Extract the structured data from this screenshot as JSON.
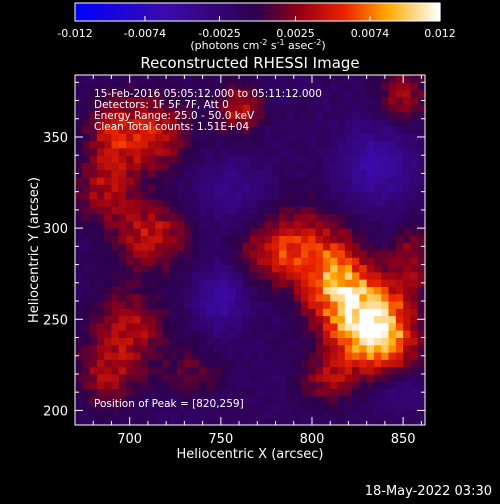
{
  "chart_data": {
    "type": "heatmap",
    "title": "Reconstructed RHESSI Image",
    "xlabel": "Heliocentric X (arcsec)",
    "ylabel": "Heliocentric Y (arcsec)",
    "xlim": [
      670,
      862
    ],
    "ylim": [
      192,
      384
    ],
    "x_ticks": [
      700,
      750,
      800,
      850
    ],
    "y_ticks": [
      200,
      250,
      300,
      350
    ],
    "colorbar": {
      "min": -0.012,
      "max": 0.012,
      "ticks": [
        "-0.012",
        "-0.0074",
        "-0.0025",
        "0.0025",
        "0.0074",
        "0.012"
      ],
      "unit_prefix": "(photons cm",
      "unit_exp1": "-2",
      "unit_mid": " s",
      "unit_exp2": "-1",
      "unit_mid2": " asec",
      "unit_exp3": "-2",
      "unit_suffix": ")"
    },
    "annotations": {
      "time_range": "15-Feb-2016 05:05:12.000 to 05:11:12.000",
      "detectors": "Detectors: 1F 5F 7F, Att 0",
      "energy_range": "Energy Range: 25.0 - 50.0 keV",
      "clean": "Clean    Total counts: 1.51E+04",
      "peak": "Position of Peak = [820,259]"
    },
    "peak": [
      820,
      259
    ],
    "sources": [
      {
        "x": 820,
        "y": 259,
        "amp": 0.0118,
        "sx": 14,
        "sy": 30,
        "rot": -28
      },
      {
        "x": 842,
        "y": 246,
        "amp": 0.0062,
        "sx": 12,
        "sy": 16,
        "rot": 0
      },
      {
        "x": 780,
        "y": 288,
        "amp": 0.0055,
        "sx": 14,
        "sy": 12,
        "rot": 0
      },
      {
        "x": 712,
        "y": 296,
        "amp": 0.0055,
        "sx": 14,
        "sy": 13,
        "rot": 0
      },
      {
        "x": 686,
        "y": 320,
        "amp": 0.0042,
        "sx": 12,
        "sy": 12,
        "rot": 0
      },
      {
        "x": 712,
        "y": 352,
        "amp": 0.0058,
        "sx": 14,
        "sy": 14,
        "rot": 0
      },
      {
        "x": 690,
        "y": 350,
        "amp": 0.0045,
        "sx": 10,
        "sy": 14,
        "rot": 0
      },
      {
        "x": 760,
        "y": 365,
        "amp": 0.0052,
        "sx": 9,
        "sy": 9,
        "rot": 0
      },
      {
        "x": 700,
        "y": 246,
        "amp": 0.0048,
        "sx": 14,
        "sy": 14,
        "rot": 0
      },
      {
        "x": 688,
        "y": 220,
        "amp": 0.0042,
        "sx": 12,
        "sy": 12,
        "rot": 0
      },
      {
        "x": 808,
        "y": 218,
        "amp": 0.004,
        "sx": 10,
        "sy": 9,
        "rot": 0
      },
      {
        "x": 850,
        "y": 372,
        "amp": 0.0042,
        "sx": 10,
        "sy": 10,
        "rot": 0
      },
      {
        "x": 855,
        "y": 282,
        "amp": 0.0042,
        "sx": 8,
        "sy": 12,
        "rot": 0
      },
      {
        "x": 735,
        "y": 222,
        "amp": 0.0025,
        "sx": 12,
        "sy": 10,
        "rot": 0
      },
      {
        "x": 750,
        "y": 262,
        "amp": -0.004,
        "sx": 10,
        "sy": 14,
        "rot": 0
      },
      {
        "x": 835,
        "y": 335,
        "amp": -0.0045,
        "sx": 14,
        "sy": 16,
        "rot": 0
      },
      {
        "x": 845,
        "y": 212,
        "amp": -0.004,
        "sx": 12,
        "sy": 10,
        "rot": 0
      },
      {
        "x": 755,
        "y": 320,
        "amp": -0.0025,
        "sx": 16,
        "sy": 14,
        "rot": 0
      }
    ],
    "background": -0.0012
  },
  "footer": {
    "date": "18-May-2022 03:30"
  }
}
